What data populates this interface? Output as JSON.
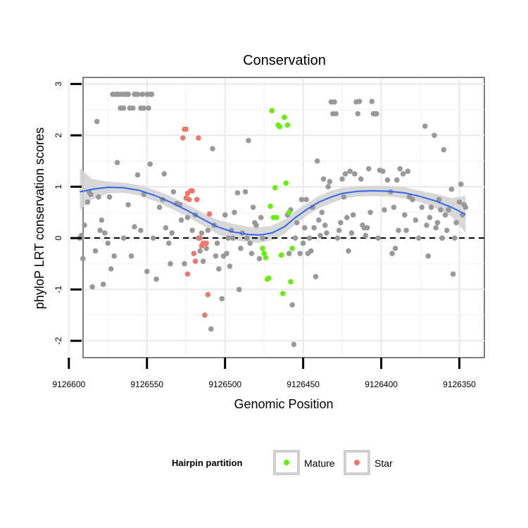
{
  "chart_data": {
    "type": "scatter",
    "title": "Conservation",
    "xlabel": "Genomic Position",
    "ylabel": "phyloP LRT conservation scores",
    "x_reversed": true,
    "xlim": [
      9126590,
      9126334
    ],
    "ylim": [
      -2.3,
      3.1
    ],
    "xticks": [
      9126600,
      9126550,
      9126500,
      9126450,
      9126400,
      9126350
    ],
    "yticks": [
      -2,
      -1,
      0,
      1,
      2,
      3
    ],
    "grid": true,
    "reference_line": 0,
    "legend": {
      "title": "Hairpin partition",
      "placement": "bottom",
      "entries": [
        "Mature",
        "Star"
      ]
    },
    "colors": {
      "Mature": "#66ee11",
      "Star": "#f0776b",
      "Other": "#999999",
      "smooth_line": "#3366ee",
      "smooth_band": "#d4d4d4"
    },
    "series": [
      {
        "name": "Other",
        "points": [
          [
            9126593,
            0.0
          ],
          [
            9126592,
            0.05
          ],
          [
            9126591,
            -0.4
          ],
          [
            9126590,
            0.25
          ],
          [
            9126588,
            0.7
          ],
          [
            9126587,
            0.9
          ],
          [
            9126586,
            0.85
          ],
          [
            9126585,
            -0.95
          ],
          [
            9126583,
            -0.25
          ],
          [
            9126582,
            2.27
          ],
          [
            9126581,
            0.8
          ],
          [
            9126580,
            0.15
          ],
          [
            9126579,
            0.35
          ],
          [
            9126578,
            -0.9
          ],
          [
            9126577,
            0.1
          ],
          [
            9126575,
            -0.1
          ],
          [
            9126574,
            0.8
          ],
          [
            9126573,
            -0.6
          ],
          [
            9126572,
            2.8
          ],
          [
            9126570,
            2.8
          ],
          [
            9126569,
            2.8
          ],
          [
            9126568,
            2.8
          ],
          [
            9126567,
            2.53
          ],
          [
            9126566,
            2.8
          ],
          [
            9126565,
            2.53
          ],
          [
            9126564,
            2.8
          ],
          [
            9126563,
            2.8
          ],
          [
            9126562,
            2.8
          ],
          [
            9126561,
            2.53
          ],
          [
            9126559,
            2.53
          ],
          [
            9126558,
            2.8
          ],
          [
            9126557,
            2.8
          ],
          [
            9126556,
            2.8
          ],
          [
            9126554,
            2.53
          ],
          [
            9126553,
            2.8
          ],
          [
            9126552,
            2.53
          ],
          [
            9126550,
            2.8
          ],
          [
            9126549,
            2.53
          ],
          [
            9126548,
            2.8
          ],
          [
            9126547,
            2.8
          ],
          [
            9126571,
            -0.35
          ],
          [
            9126569,
            1.47
          ],
          [
            9126565,
            0.0
          ],
          [
            9126562,
            0.65
          ],
          [
            9126560,
            -0.35
          ],
          [
            9126558,
            0.22
          ],
          [
            9126556,
            1.23
          ],
          [
            9126554,
            0.15
          ],
          [
            9126552,
            0.85
          ],
          [
            9126550,
            -0.65
          ],
          [
            9126548,
            1.44
          ],
          [
            9126546,
            0.0
          ],
          [
            9126544,
            -0.8
          ],
          [
            9126542,
            0.6
          ],
          [
            9126540,
            0.75
          ],
          [
            9126539,
            1.25
          ],
          [
            9126538,
            0.2
          ],
          [
            9126536,
            -0.1
          ],
          [
            9126535,
            -0.5
          ],
          [
            9126534,
            0.1
          ],
          [
            9126533,
            0.9
          ],
          [
            9126531,
            0.67
          ],
          [
            9126529,
            0.65
          ],
          [
            9126528,
            0.35
          ],
          [
            9126526,
            -0.5
          ],
          [
            9126524,
            0.4
          ],
          [
            9126521,
            0.15
          ],
          [
            9126519,
            0.45
          ],
          [
            9126517,
            0.0
          ],
          [
            9126516,
            -0.25
          ],
          [
            9126515,
            0.1
          ],
          [
            9126514,
            -0.45
          ],
          [
            9126512,
            -0.2
          ],
          [
            9126511,
            0.15
          ],
          [
            9126509,
            -1.77
          ],
          [
            9126508,
            1.74
          ],
          [
            9126507,
            0.25
          ],
          [
            9126506,
            -0.35
          ],
          [
            9126505,
            -0.1
          ],
          [
            9126504,
            -0.6
          ],
          [
            9126502,
            -1.18
          ],
          [
            9126501,
            -0.35
          ],
          [
            9126500,
            0.45
          ],
          [
            9126499,
            -0.3
          ],
          [
            9126498,
            0.0
          ],
          [
            9126497,
            -0.55
          ],
          [
            9126496,
            0.15
          ],
          [
            9126495,
            0.0
          ],
          [
            9126494,
            0.5
          ],
          [
            9126492,
            0.88
          ],
          [
            9126491,
            -1.0
          ],
          [
            9126490,
            -0.2
          ],
          [
            9126489,
            0.1
          ],
          [
            9126487,
            0.9
          ],
          [
            9126486,
            0.0
          ],
          [
            9126485,
            1.9
          ],
          [
            9126484,
            -0.1
          ],
          [
            9126483,
            -0.3
          ],
          [
            9126482,
            0.6
          ],
          [
            9126481,
            0.3
          ],
          [
            9126480,
            0.25
          ],
          [
            9126478,
            -0.4
          ],
          [
            9126477,
            0.4
          ],
          [
            9126476,
            0.0
          ],
          [
            9126460,
            0.45
          ],
          [
            9126459,
            -0.3
          ],
          [
            9126458,
            0.55
          ],
          [
            9126457,
            -1.3
          ],
          [
            9126456,
            -2.07
          ],
          [
            9126455,
            0.0
          ],
          [
            9126454,
            0.3
          ],
          [
            9126452,
            -0.3
          ],
          [
            9126451,
            0.75
          ],
          [
            9126450,
            -0.1
          ],
          [
            9126449,
            0.2
          ],
          [
            9126448,
            0.75
          ],
          [
            9126447,
            -0.3
          ],
          [
            9126446,
            0.0
          ],
          [
            9126445,
            -0.25
          ],
          [
            9126444,
            0.6
          ],
          [
            9126443,
            0.2
          ],
          [
            9126442,
            -0.75
          ],
          [
            9126441,
            1.5
          ],
          [
            9126440,
            0.35
          ],
          [
            9126439,
            0.05
          ],
          [
            9126438,
            0.5
          ],
          [
            9126437,
            1.15
          ],
          [
            9126436,
            0.25
          ],
          [
            9126435,
            0.1
          ],
          [
            9126434,
            1.0
          ],
          [
            9126433,
            1.1
          ],
          [
            9126432,
            2.65
          ],
          [
            9126431,
            2.42
          ],
          [
            9126430,
            2.65
          ],
          [
            9126429,
            2.42
          ],
          [
            9126428,
            0.0
          ],
          [
            9126427,
            0.15
          ],
          [
            9126426,
            0.3
          ],
          [
            9126425,
            1.15
          ],
          [
            9126424,
            0.8
          ],
          [
            9126423,
            1.25
          ],
          [
            9126422,
            0.4
          ],
          [
            9126421,
            -0.25
          ],
          [
            9126420,
            1.3
          ],
          [
            9126419,
            0.1
          ],
          [
            9126418,
            0.45
          ],
          [
            9126417,
            1.25
          ],
          [
            9126416,
            2.65
          ],
          [
            9126415,
            2.42
          ],
          [
            9126414,
            2.66
          ],
          [
            9126413,
            1.15
          ],
          [
            9126412,
            0.25
          ],
          [
            9126411,
            0.2
          ],
          [
            9126410,
            0.05
          ],
          [
            9126409,
            0.2
          ],
          [
            9126408,
            1.35
          ],
          [
            9126407,
            0.5
          ],
          [
            9126406,
            2.66
          ],
          [
            9126405,
            2.42
          ],
          [
            9126404,
            2.42
          ],
          [
            9126403,
            2.42
          ],
          [
            9126402,
            0.0
          ],
          [
            9126401,
            1.32
          ],
          [
            9126399,
            1.3
          ],
          [
            9126398,
            0.55
          ],
          [
            9126396,
            1.13
          ],
          [
            9126394,
            0.9
          ],
          [
            9126393,
            -0.3
          ],
          [
            9126392,
            0.6
          ],
          [
            9126391,
            -0.2
          ],
          [
            9126390,
            1.13
          ],
          [
            9126389,
            0.15
          ],
          [
            9126388,
            1.35
          ],
          [
            9126386,
            1.25
          ],
          [
            9126385,
            0.45
          ],
          [
            9126384,
            0.15
          ],
          [
            9126383,
            1.3
          ],
          [
            9126382,
            0.8
          ],
          [
            9126380,
            0.75
          ],
          [
            9126378,
            0.35
          ],
          [
            9126376,
            0.0
          ],
          [
            9126374,
            0.6
          ],
          [
            9126372,
            2.18
          ],
          [
            9126371,
            0.25
          ],
          [
            9126370,
            -0.35
          ],
          [
            9126369,
            0.4
          ],
          [
            9126368,
            0.6
          ],
          [
            9126366,
            2.0
          ],
          [
            9126365,
            0.2
          ],
          [
            9126364,
            0.3
          ],
          [
            9126363,
            0.75
          ],
          [
            9126362,
            0.55
          ],
          [
            9126361,
            0.0
          ],
          [
            9126360,
            1.72
          ],
          [
            9126359,
            0.45
          ],
          [
            9126358,
            0.15
          ],
          [
            9126357,
            0.55
          ],
          [
            9126355,
            0.95
          ],
          [
            9126354,
            -0.7
          ],
          [
            9126353,
            0.0
          ],
          [
            9126352,
            0.3
          ],
          [
            9126350,
            0.7
          ],
          [
            9126349,
            1.05
          ],
          [
            9126348,
            0.45
          ],
          [
            9126347,
            0.65
          ],
          [
            9126346,
            0.6
          ]
        ]
      },
      {
        "name": "Star",
        "points": [
          [
            9126527,
            1.95
          ],
          [
            9126526,
            2.12
          ],
          [
            9126525,
            2.12
          ],
          [
            9126524,
            -0.7
          ],
          [
            9126523,
            0.75
          ],
          [
            9126522,
            0.92
          ],
          [
            9126521,
            0.92
          ],
          [
            9126520,
            -0.3
          ],
          [
            9126519,
            -0.45
          ],
          [
            9126518,
            0.75
          ],
          [
            9126517,
            1.95
          ],
          [
            9126516,
            0.0
          ],
          [
            9126515,
            -0.15
          ],
          [
            9126514,
            -0.1
          ],
          [
            9126513,
            -1.5
          ],
          [
            9126512,
            -0.1
          ],
          [
            9126511,
            -1.1
          ],
          [
            9126510,
            0.47
          ],
          [
            9126524,
            0.87
          ],
          [
            9126525,
            0.78
          ]
        ]
      },
      {
        "name": "Mature",
        "points": [
          [
            9126476,
            -0.2
          ],
          [
            9126475,
            -0.3
          ],
          [
            9126474,
            -0.38
          ],
          [
            9126473,
            -0.8
          ],
          [
            9126472,
            -0.78
          ],
          [
            9126471,
            0.62
          ],
          [
            9126470,
            2.48
          ],
          [
            9126469,
            0.4
          ],
          [
            9126468,
            0.98
          ],
          [
            9126467,
            0.4
          ],
          [
            9126466,
            2.2
          ],
          [
            9126465,
            2.17
          ],
          [
            9126464,
            -0.33
          ],
          [
            9126463,
            -1.08
          ],
          [
            9126462,
            2.35
          ],
          [
            9126461,
            1.07
          ],
          [
            9126460,
            2.2
          ],
          [
            9126459,
            0.5
          ],
          [
            9126458,
            -0.85
          ],
          [
            9126457,
            -0.2
          ]
        ]
      }
    ],
    "smooth": {
      "x": [
        9126593,
        9126585,
        9126575,
        9126565,
        9126555,
        9126545,
        9126535,
        9126525,
        9126515,
        9126505,
        9126495,
        9126485,
        9126478,
        9126470,
        9126462,
        9126455,
        9126447,
        9126440,
        9126432,
        9126425,
        9126415,
        9126405,
        9126395,
        9126385,
        9126375,
        9126365,
        9126355,
        9126346
      ],
      "y": [
        0.9,
        0.95,
        0.99,
        0.98,
        0.93,
        0.83,
        0.7,
        0.55,
        0.38,
        0.22,
        0.12,
        0.07,
        0.06,
        0.1,
        0.22,
        0.4,
        0.57,
        0.7,
        0.8,
        0.87,
        0.91,
        0.92,
        0.91,
        0.88,
        0.81,
        0.72,
        0.6,
        0.46
      ],
      "lower": [
        0.55,
        0.75,
        0.87,
        0.88,
        0.83,
        0.72,
        0.58,
        0.43,
        0.26,
        0.08,
        -0.04,
        -0.08,
        -0.09,
        -0.04,
        0.08,
        0.27,
        0.45,
        0.58,
        0.68,
        0.76,
        0.81,
        0.82,
        0.81,
        0.77,
        0.7,
        0.58,
        0.42,
        0.1
      ],
      "upper": [
        1.36,
        1.15,
        1.1,
        1.08,
        1.03,
        0.94,
        0.82,
        0.67,
        0.5,
        0.36,
        0.28,
        0.22,
        0.21,
        0.24,
        0.36,
        0.53,
        0.69,
        0.82,
        0.92,
        0.98,
        1.01,
        1.02,
        1.01,
        0.99,
        0.92,
        0.86,
        0.78,
        0.82
      ]
    }
  }
}
